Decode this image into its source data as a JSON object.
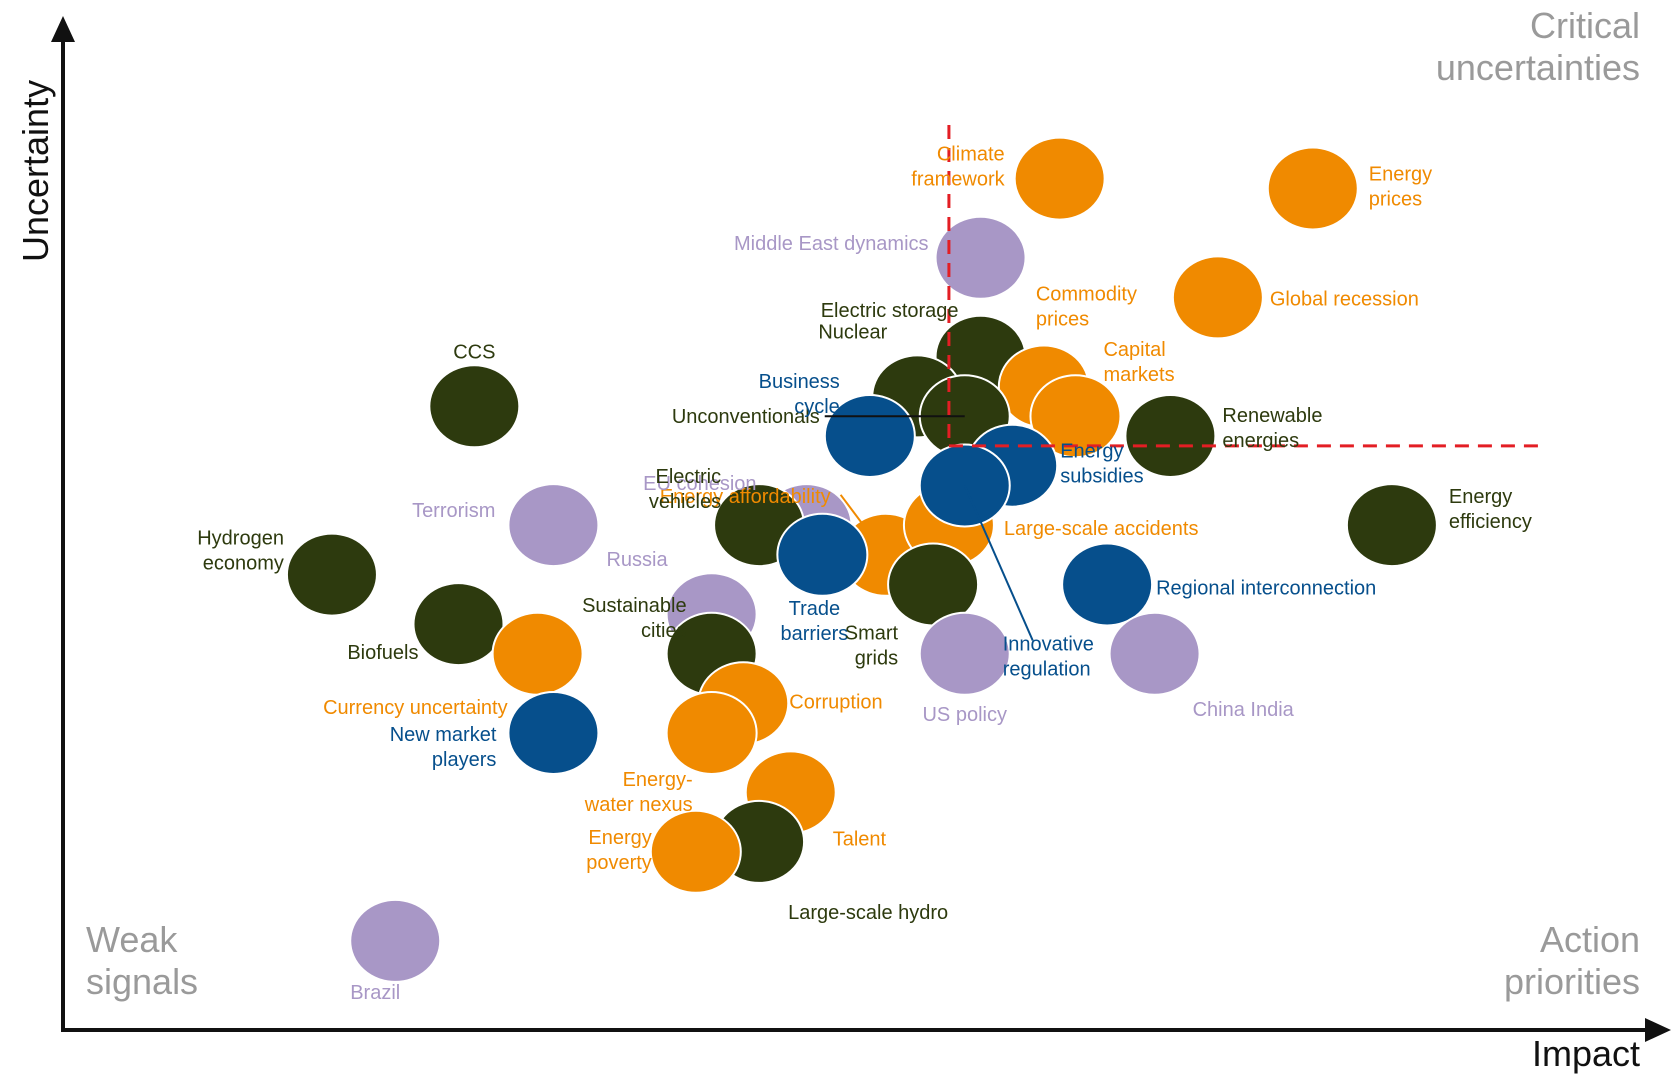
{
  "chart_data": {
    "type": "scatter",
    "title": "",
    "xlabel": "Impact",
    "ylabel": "Uncertainty",
    "xlim": [
      0,
      100
    ],
    "ylim": [
      0,
      100
    ],
    "grid": false,
    "legend": "none",
    "colors": {
      "orange": "#F08A00",
      "green": "#2D3A0E",
      "purple": "#A897C6",
      "blue": "#064F8C",
      "threshold": "#E31E24"
    },
    "thresholds": {
      "x": 56,
      "y": 59
    },
    "quadrants": {
      "top_right": [
        "Critical",
        "uncertainties"
      ],
      "bottom_left": [
        "Weak",
        "signals"
      ],
      "bottom_right": [
        "Action",
        "priorities"
      ]
    },
    "points": [
      {
        "label": [
          "Climate",
          "framework"
        ],
        "x": 63,
        "y": 86,
        "color": "orange"
      },
      {
        "label": [
          "Energy",
          "prices"
        ],
        "x": 79,
        "y": 85,
        "color": "orange"
      },
      {
        "label": [
          "Middle East dynamics"
        ],
        "x": 58,
        "y": 78,
        "color": "purple"
      },
      {
        "label": [
          "Global recession"
        ],
        "x": 73,
        "y": 74,
        "color": "orange"
      },
      {
        "label": [
          "Electric storage"
        ],
        "x": 58,
        "y": 68,
        "color": "green"
      },
      {
        "label": [
          "CCS"
        ],
        "x": 26,
        "y": 63,
        "color": "green"
      },
      {
        "label": [
          "Nuclear"
        ],
        "x": 54,
        "y": 64,
        "color": "green"
      },
      {
        "label": [
          "Commodity",
          "prices"
        ],
        "x": 62,
        "y": 65,
        "color": "orange"
      },
      {
        "label": [
          "Capital",
          "markets"
        ],
        "x": 64,
        "y": 62,
        "color": "orange"
      },
      {
        "label": [
          "Unconventionals"
        ],
        "x": 57,
        "y": 62,
        "color": "green"
      },
      {
        "label": [
          "Business",
          "cycle"
        ],
        "x": 51,
        "y": 60,
        "color": "blue"
      },
      {
        "label": [
          "Renewable",
          "energies"
        ],
        "x": 70,
        "y": 60,
        "color": "green"
      },
      {
        "label": [
          "Energy affordability"
        ],
        "x": 52,
        "y": 48,
        "color": "orange"
      },
      {
        "label": [
          "EU cohesion"
        ],
        "x": 47,
        "y": 51,
        "color": "purple"
      },
      {
        "label": [
          "Energy",
          "subsidies"
        ],
        "x": 60,
        "y": 57,
        "color": "blue"
      },
      {
        "label": [
          "Electric",
          "vehicles"
        ],
        "x": 44,
        "y": 51,
        "color": "green"
      },
      {
        "label": [
          "Terrorism"
        ],
        "x": 31,
        "y": 51,
        "color": "purple"
      },
      {
        "label": [
          "Large-scale accidents"
        ],
        "x": 56,
        "y": 51,
        "color": "orange"
      },
      {
        "label": [
          "Energy",
          "efficiency"
        ],
        "x": 84,
        "y": 51,
        "color": "green"
      },
      {
        "label": [
          "Hydrogen",
          "economy"
        ],
        "x": 17,
        "y": 46,
        "color": "green"
      },
      {
        "label": [
          "Trade",
          "barriers"
        ],
        "x": 48,
        "y": 48,
        "color": "blue"
      },
      {
        "label": [
          "Smart",
          "grids"
        ],
        "x": 55,
        "y": 45,
        "color": "green"
      },
      {
        "label": [
          "Russia"
        ],
        "x": 41,
        "y": 42,
        "color": "purple"
      },
      {
        "label": [
          "Regional interconnection"
        ],
        "x": 66,
        "y": 45,
        "color": "blue"
      },
      {
        "label": [
          "Biofuels"
        ],
        "x": 25,
        "y": 41,
        "color": "green"
      },
      {
        "label": [
          "Sustainable",
          "cities"
        ],
        "x": 41,
        "y": 38,
        "color": "green"
      },
      {
        "label": [
          "Currency uncertainty"
        ],
        "x": 30,
        "y": 38,
        "color": "orange"
      },
      {
        "label": [
          "US policy"
        ],
        "x": 57,
        "y": 38,
        "color": "purple"
      },
      {
        "label": [
          "Innovative",
          "regulation"
        ],
        "x": 57,
        "y": 55,
        "color": "blue"
      },
      {
        "label": [
          "China India"
        ],
        "x": 69,
        "y": 38,
        "color": "purple"
      },
      {
        "label": [
          "Corruption"
        ],
        "x": 43,
        "y": 33,
        "color": "orange"
      },
      {
        "label": [
          "Energy-",
          "water nexus"
        ],
        "x": 41,
        "y": 30,
        "color": "orange"
      },
      {
        "label": [
          "New market",
          "players"
        ],
        "x": 31,
        "y": 30,
        "color": "blue"
      },
      {
        "label": [
          "Talent"
        ],
        "x": 46,
        "y": 24,
        "color": "orange"
      },
      {
        "label": [
          "Large-scale hydro"
        ],
        "x": 44,
        "y": 19,
        "color": "green"
      },
      {
        "label": [
          "Energy",
          "poverty"
        ],
        "x": 40,
        "y": 18,
        "color": "orange"
      },
      {
        "label": [
          "Brazil"
        ],
        "x": 21,
        "y": 9,
        "color": "purple"
      }
    ]
  }
}
